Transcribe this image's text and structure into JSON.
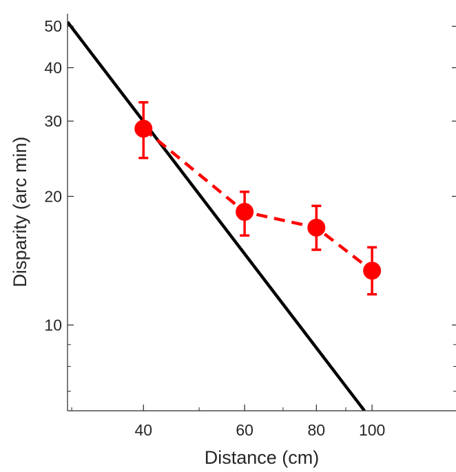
{
  "chart_data": {
    "type": "line",
    "xlabel": "Distance (cm)",
    "ylabel": "Disparity (arc min)",
    "x_scale": "log",
    "y_scale": "log",
    "xlim": [
      29.5,
      140
    ],
    "ylim": [
      6.3,
      53.5
    ],
    "x_ticks": [
      40,
      60,
      80,
      100
    ],
    "x_tick_labels": [
      "40",
      "60",
      "80",
      "100"
    ],
    "y_ticks": [
      10,
      20,
      30,
      40,
      50
    ],
    "y_tick_labels": [
      "10",
      "20",
      "30",
      "40",
      "50"
    ],
    "grid": false,
    "series": [
      {
        "style": "solid",
        "color": "#000000",
        "x": [
          29.5,
          97
        ],
        "y": [
          51.2,
          6.3
        ]
      },
      {
        "style": "dashed-markers-errorbars",
        "color": "#ff0000",
        "x": [
          40,
          60,
          80,
          100
        ],
        "y": [
          28.8,
          18.4,
          16.9,
          13.4
        ],
        "err_low": [
          24.6,
          16.2,
          15.0,
          11.8
        ],
        "err_high": [
          33.2,
          20.5,
          19.0,
          15.2
        ]
      }
    ]
  }
}
